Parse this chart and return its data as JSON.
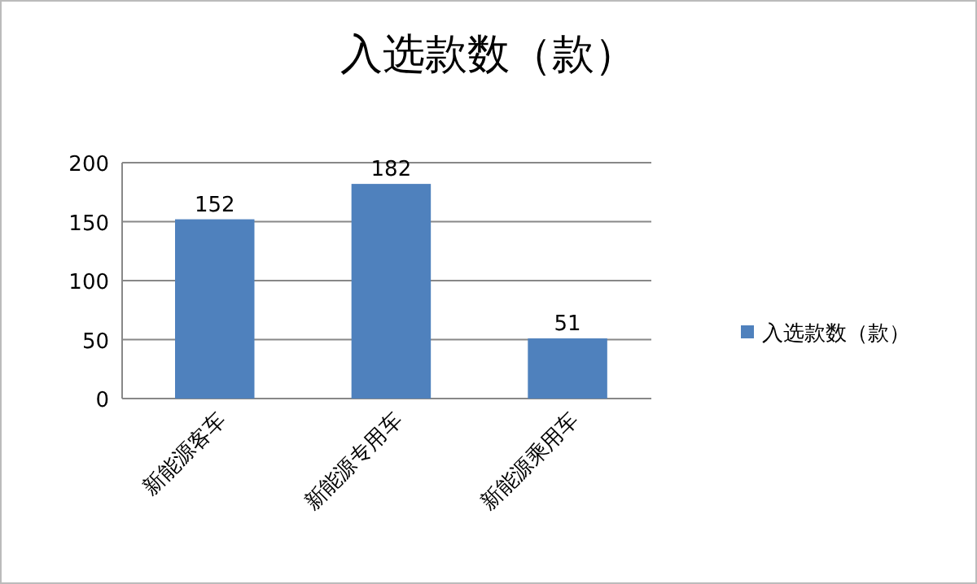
{
  "chart_data": {
    "type": "bar",
    "title": "入选款数（款）",
    "categories": [
      "新能源客车",
      "新能源专用车",
      "新能源乘用车"
    ],
    "series": [
      {
        "name": "入选款数（款）",
        "color": "#4f81bd",
        "values": [
          152,
          182,
          51
        ]
      }
    ],
    "ylim": [
      0,
      200
    ],
    "yticks": [
      0,
      50,
      100,
      150,
      200
    ],
    "grid": "y",
    "legend": "right",
    "data_labels": true
  }
}
